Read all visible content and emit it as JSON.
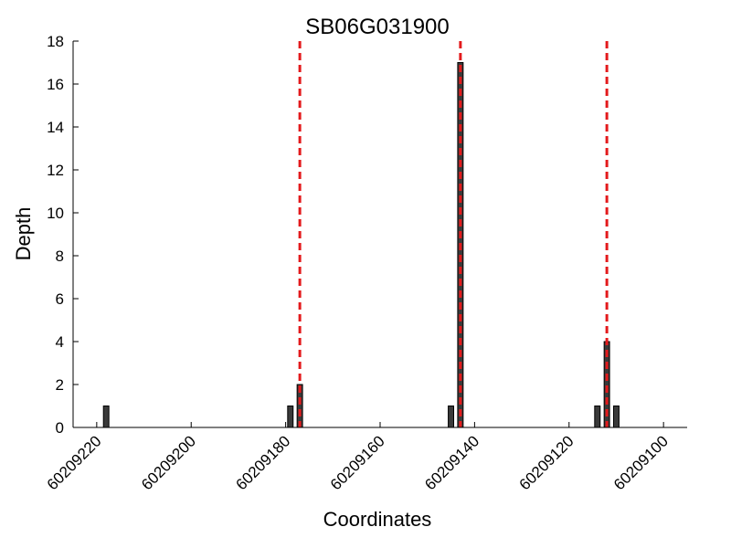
{
  "chart_data": {
    "type": "bar",
    "title": "SB06G031900",
    "xlabel": "Coordinates",
    "ylabel": "Depth",
    "x_reversed": true,
    "xlim": [
      60209225,
      60209095
    ],
    "ylim": [
      0,
      18
    ],
    "xticks": [
      60209220,
      60209200,
      60209180,
      60209160,
      60209140,
      60209120,
      60209100
    ],
    "yticks": [
      0,
      2,
      4,
      6,
      8,
      10,
      12,
      14,
      16,
      18
    ],
    "bars": [
      {
        "x": 60209218,
        "value": 1
      },
      {
        "x": 60209179,
        "value": 1
      },
      {
        "x": 60209177,
        "value": 2
      },
      {
        "x": 60209145,
        "value": 1
      },
      {
        "x": 60209143,
        "value": 17
      },
      {
        "x": 60209114,
        "value": 1
      },
      {
        "x": 60209112,
        "value": 4
      },
      {
        "x": 60209110,
        "value": 1
      }
    ],
    "reference_lines": [
      60209177,
      60209143,
      60209112
    ],
    "grid": false,
    "colors": {
      "bar_fill": "#3a3a3a",
      "bar_edge": "#000000",
      "reference_line": "#e31a1c",
      "axis": "#000000"
    }
  }
}
